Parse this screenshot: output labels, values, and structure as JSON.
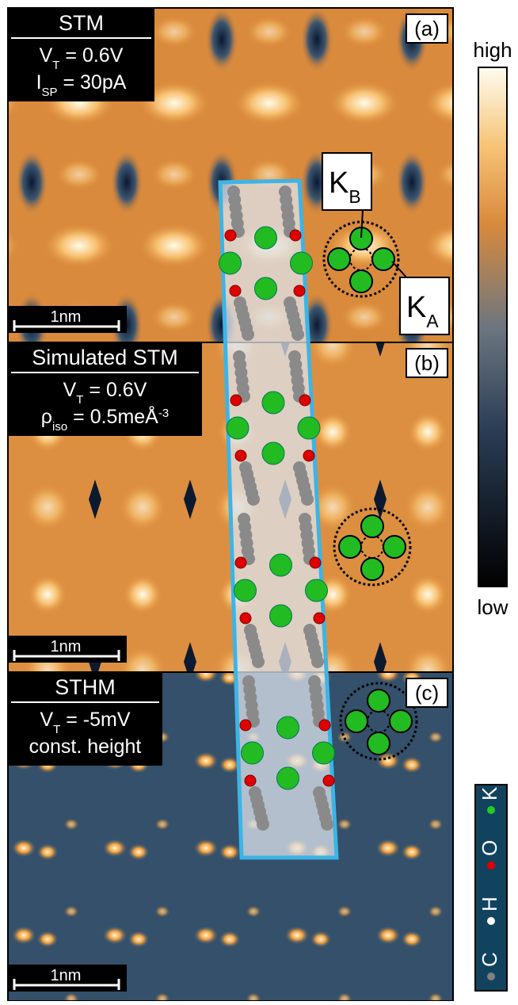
{
  "panels": [
    {
      "label": "(a)",
      "title": "STM",
      "lines": [
        [
          {
            "t": "V"
          },
          {
            "sub": "T"
          },
          {
            "t": " = 0.6V"
          }
        ],
        [
          {
            "t": "I"
          },
          {
            "sub": "SP"
          },
          {
            "t": " = 30pA"
          }
        ]
      ],
      "scale": "1nm"
    },
    {
      "label": "(b)",
      "title": "Simulated STM",
      "lines": [
        [
          {
            "t": "V"
          },
          {
            "sub": "T"
          },
          {
            "t": " = 0.6V"
          }
        ],
        [
          {
            "t": "ρ"
          },
          {
            "sub": "iso"
          },
          {
            "t": " = 0.5meÅ"
          },
          {
            "sup": "-3"
          }
        ]
      ],
      "scale": "1nm"
    },
    {
      "label": "(c)",
      "title": "STHM",
      "lines": [
        [
          {
            "t": "V"
          },
          {
            "sub": "T"
          },
          {
            "t": " = -5mV"
          }
        ],
        [
          {
            "t": "const. height"
          }
        ]
      ],
      "scale": "1nm"
    }
  ],
  "site_labels": [
    [
      {
        "t": "K"
      },
      {
        "sub": "B"
      }
    ],
    [
      {
        "t": "K"
      },
      {
        "sub": "A"
      }
    ]
  ],
  "colorbar": {
    "high": "high",
    "low": "low"
  },
  "legend": [
    {
      "name": "C",
      "color": "#808080"
    },
    {
      "name": "H",
      "color": "#ffffff"
    },
    {
      "name": "O",
      "color": "#e00000"
    },
    {
      "name": "K",
      "color": "#22cc22"
    }
  ]
}
